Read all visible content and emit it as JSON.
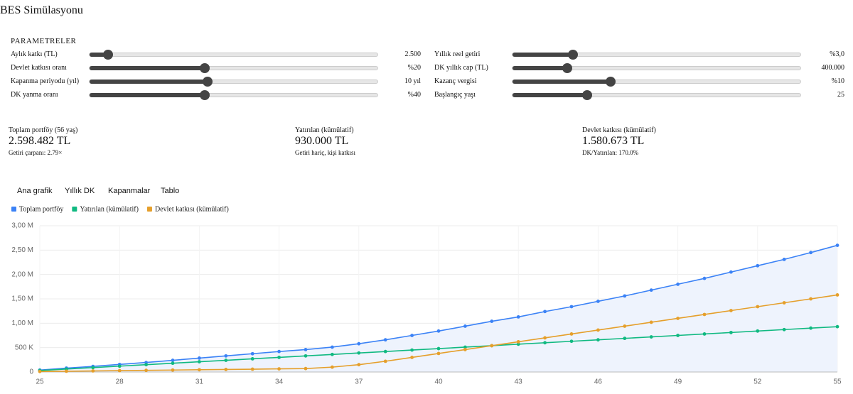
{
  "header": {
    "title": "BES Simülasyonu"
  },
  "parameters": {
    "heading": "PARAMETRELER",
    "left": [
      {
        "label": "Aylık katkı (TL)",
        "value": "2.500"
      },
      {
        "label": "Devlet katkısı oranı",
        "value": "%20"
      },
      {
        "label": "Kapanma periyodu (yıl)",
        "value": "10 yıl"
      },
      {
        "label": "DK yanma oranı",
        "value": "%40"
      }
    ],
    "right": [
      {
        "label": "Yıllık reel getiri",
        "value": "%3,0"
      },
      {
        "label": "DK yıllık cap (TL)",
        "value": "400.000"
      },
      {
        "label": "Kazanç vergisi",
        "value": "%10"
      },
      {
        "label": "Başlangıç yaşı",
        "value": "25"
      }
    ]
  },
  "stats": [
    {
      "label": "Toplam portföy (56 yaş)",
      "value": "2.598.482 TL",
      "note": "Getiri çarpanı: 2.79×"
    },
    {
      "label": "Yatırılan (kümülatif)",
      "value": "930.000 TL",
      "note": "Getiri hariç, kişi katkısı"
    },
    {
      "label": "Devlet katkısı (kümülatif)",
      "value": "1.580.673 TL",
      "note": "DK/Yatırılan: 170.0%"
    }
  ],
  "tabs": [
    "Ana grafik",
    "Yıllık DK",
    "Kapanmalar",
    "Tablo"
  ],
  "chart_data": {
    "type": "line",
    "x": [
      25,
      26,
      27,
      28,
      29,
      30,
      31,
      32,
      33,
      34,
      35,
      36,
      37,
      38,
      39,
      40,
      41,
      42,
      43,
      44,
      45,
      46,
      47,
      48,
      49,
      50,
      51,
      52,
      53,
      54,
      55
    ],
    "series": [
      {
        "name": "Toplam portföy",
        "color": "#3b82f6",
        "fill": "#eef3fd",
        "values": [
          40000,
          80000,
          115000,
          155000,
          195000,
          240000,
          285000,
          330000,
          375000,
          420000,
          460000,
          510000,
          580000,
          660000,
          750000,
          840000,
          940000,
          1040000,
          1130000,
          1240000,
          1340000,
          1450000,
          1560000,
          1680000,
          1800000,
          1920000,
          2050000,
          2180000,
          2310000,
          2450000,
          2598482
        ]
      },
      {
        "name": "Yatırılan (kümülatif)",
        "color": "#10b981",
        "values": [
          30000,
          60000,
          90000,
          120000,
          150000,
          180000,
          210000,
          240000,
          270000,
          300000,
          330000,
          360000,
          390000,
          420000,
          450000,
          480000,
          510000,
          540000,
          570000,
          600000,
          630000,
          660000,
          690000,
          720000,
          750000,
          780000,
          810000,
          840000,
          870000,
          900000,
          930000
        ]
      },
      {
        "name": "Devlet katkısı (kümülatif)",
        "color": "#e59f2b",
        "values": [
          10000,
          16000,
          22000,
          28000,
          34000,
          40000,
          46000,
          52000,
          58000,
          64000,
          70000,
          100000,
          150000,
          220000,
          300000,
          380000,
          460000,
          540000,
          620000,
          700000,
          780000,
          860000,
          940000,
          1020000,
          1100000,
          1180000,
          1260000,
          1340000,
          1420000,
          1500000,
          1580673
        ]
      }
    ],
    "xlim": [
      25,
      55
    ],
    "xticks": [
      25,
      28,
      31,
      34,
      37,
      40,
      43,
      46,
      49,
      52,
      55
    ],
    "ylim": [
      0,
      3000000
    ],
    "yticks": [
      0,
      {
        "value": 500000,
        "label": "500 K"
      },
      {
        "value": 1000000,
        "label": "1,00 M"
      },
      {
        "value": 1500000,
        "label": "1,50 M"
      },
      {
        "value": 2000000,
        "label": "2,00 M"
      },
      {
        "value": 2500000,
        "label": "2,50 M"
      },
      {
        "value": 3000000,
        "label": "3,00 M"
      }
    ],
    "grid": true,
    "legend": "top-left"
  }
}
